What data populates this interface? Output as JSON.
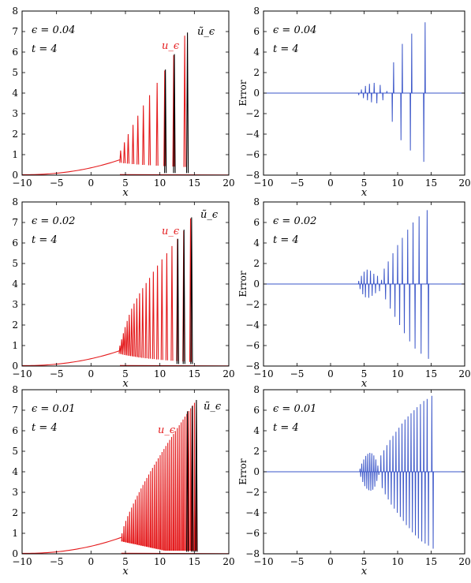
{
  "figure": {
    "background": "#ffffff"
  },
  "colors": {
    "u_curve": "#e41a1c",
    "u_tilde": "#000000",
    "error": "#3a55c8",
    "axis": "#000000"
  },
  "chart_data": [
    {
      "type": "line",
      "panel": "left-row-1",
      "xlabel": "x",
      "ylabel": "",
      "xlim": [
        -10,
        20
      ],
      "ylim": [
        0,
        8
      ],
      "xticks": [
        -10,
        -5,
        0,
        5,
        10,
        15,
        20
      ],
      "yticks": [
        0,
        1,
        2,
        3,
        4,
        5,
        6,
        7,
        8
      ],
      "annotations": [
        "ϵ = 0.04",
        "t = 4"
      ],
      "series": [
        {
          "name": "u_ϵ",
          "color": "#e41a1c",
          "base": {
            "x_start": -10,
            "x_end": 4.2,
            "y_start": 0.02,
            "y_end": 0.75
          },
          "peaks_x": [
            4.3,
            4.85,
            5.4,
            6.1,
            6.8,
            7.6,
            8.5,
            9.6,
            10.7,
            12.0,
            13.6
          ],
          "peaks_y": [
            1.2,
            1.6,
            2.0,
            2.45,
            2.9,
            3.4,
            3.9,
            4.5,
            5.1,
            5.85,
            6.8
          ]
        },
        {
          "name": "ũ_ϵ",
          "color": "#000000",
          "peaks_x": [
            10.8,
            12.1,
            14.0
          ],
          "peaks_y": [
            5.15,
            5.9,
            6.95
          ]
        }
      ]
    },
    {
      "type": "line",
      "panel": "right-row-1",
      "xlabel": "x",
      "ylabel": "Error",
      "xlim": [
        -10,
        20
      ],
      "ylim": [
        -8,
        8
      ],
      "xticks": [
        -10,
        -5,
        0,
        5,
        10,
        15,
        20
      ],
      "yticks": [
        -8,
        -6,
        -4,
        -2,
        0,
        2,
        4,
        6,
        8
      ],
      "annotations": [
        "ϵ = 0.04",
        "t = 4"
      ],
      "series": [
        {
          "name": "",
          "color": "#3a55c8",
          "spikes": [
            [
              4.2,
              -0.2
            ],
            [
              4.6,
              0.35
            ],
            [
              4.9,
              -0.5
            ],
            [
              5.2,
              0.7
            ],
            [
              5.5,
              -0.7
            ],
            [
              5.8,
              0.9
            ],
            [
              6.1,
              -0.9
            ],
            [
              6.5,
              1.0
            ],
            [
              6.9,
              -1.0
            ],
            [
              7.4,
              0.8
            ],
            [
              7.8,
              -0.7
            ],
            [
              8.4,
              0.2
            ],
            [
              9.2,
              -2.8
            ],
            [
              9.4,
              3.0
            ],
            [
              10.5,
              -4.6
            ],
            [
              10.7,
              4.8
            ],
            [
              11.9,
              -5.6
            ],
            [
              12.1,
              5.8
            ],
            [
              13.9,
              -6.7
            ],
            [
              14.1,
              6.9
            ]
          ]
        }
      ]
    },
    {
      "type": "line",
      "panel": "left-row-2",
      "xlabel": "x",
      "ylabel": "",
      "xlim": [
        -10,
        20
      ],
      "ylim": [
        0,
        8
      ],
      "xticks": [
        -10,
        -5,
        0,
        5,
        10,
        15,
        20
      ],
      "yticks": [
        0,
        1,
        2,
        3,
        4,
        5,
        6,
        7,
        8
      ],
      "annotations": [
        "ϵ = 0.02",
        "t = 4"
      ],
      "series": [
        {
          "name": "u_ϵ",
          "color": "#e41a1c",
          "base": {
            "x_start": -10,
            "x_end": 4.2,
            "y_start": 0.02,
            "y_end": 0.75
          },
          "peaks_x": [
            4.2,
            4.45,
            4.7,
            4.95,
            5.25,
            5.55,
            5.9,
            6.25,
            6.65,
            7.05,
            7.5,
            8.0,
            8.5,
            9.05,
            9.65,
            10.3,
            11.0,
            11.75,
            12.55,
            13.45,
            14.45
          ],
          "peaks_y": [
            1.0,
            1.3,
            1.6,
            1.9,
            2.2,
            2.5,
            2.8,
            3.05,
            3.3,
            3.55,
            3.8,
            4.05,
            4.3,
            4.6,
            4.9,
            5.2,
            5.5,
            5.85,
            6.2,
            6.6,
            7.2
          ]
        },
        {
          "name": "ũ_ϵ",
          "color": "#000000",
          "peaks_x": [
            12.6,
            13.5,
            14.6
          ],
          "peaks_y": [
            6.2,
            6.65,
            7.25
          ]
        }
      ]
    },
    {
      "type": "line",
      "panel": "right-row-2",
      "xlabel": "x",
      "ylabel": "Error",
      "xlim": [
        -10,
        20
      ],
      "ylim": [
        -8,
        8
      ],
      "xticks": [
        -10,
        -5,
        0,
        5,
        10,
        15,
        20
      ],
      "yticks": [
        -8,
        -6,
        -4,
        -2,
        0,
        2,
        4,
        6,
        8
      ],
      "annotations": [
        "ϵ = 0.02",
        "t = 4"
      ],
      "series": [
        {
          "name": "",
          "color": "#3a55c8",
          "spikes": [
            [
              4.2,
              0.3
            ],
            [
              4.4,
              -0.5
            ],
            [
              4.6,
              0.8
            ],
            [
              4.8,
              -1.0
            ],
            [
              5.0,
              1.2
            ],
            [
              5.2,
              -1.3
            ],
            [
              5.45,
              1.4
            ],
            [
              5.7,
              -1.35
            ],
            [
              5.95,
              1.3
            ],
            [
              6.2,
              -1.15
            ],
            [
              6.45,
              1.0
            ],
            [
              6.7,
              -0.9
            ],
            [
              7.0,
              0.8
            ],
            [
              7.3,
              -0.7
            ],
            [
              7.6,
              0.4
            ],
            [
              8.0,
              1.5
            ],
            [
              8.2,
              -1.5
            ],
            [
              8.6,
              2.2
            ],
            [
              8.9,
              -2.4
            ],
            [
              9.3,
              3.0
            ],
            [
              9.6,
              -3.2
            ],
            [
              10.0,
              3.8
            ],
            [
              10.3,
              -4.0
            ],
            [
              10.7,
              4.5
            ],
            [
              11.0,
              -4.8
            ],
            [
              11.5,
              5.3
            ],
            [
              11.8,
              -5.6
            ],
            [
              12.3,
              6.0
            ],
            [
              12.6,
              -6.3
            ],
            [
              13.2,
              6.6
            ],
            [
              13.5,
              -6.8
            ],
            [
              14.4,
              7.2
            ],
            [
              14.6,
              -7.3
            ]
          ]
        }
      ]
    },
    {
      "type": "line",
      "panel": "left-row-3",
      "xlabel": "x",
      "ylabel": "",
      "xlim": [
        -10,
        20
      ],
      "ylim": [
        0,
        8
      ],
      "xticks": [
        -10,
        -5,
        0,
        5,
        10,
        15,
        20
      ],
      "yticks": [
        0,
        1,
        2,
        3,
        4,
        5,
        6,
        7,
        8
      ],
      "annotations": [
        "ϵ = 0.01",
        "t = 4"
      ],
      "series": [
        {
          "name": "u_ϵ",
          "color": "#e41a1c",
          "base": {
            "x_start": -10,
            "x_end": 4.4,
            "y_start": 0.02,
            "y_end": 0.8
          },
          "dense_start": 4.5,
          "dense_end": 15.3,
          "dense_count": 40,
          "dense_y_start": 1.0,
          "dense_y_end": 7.5
        },
        {
          "name": "ũ_ϵ",
          "color": "#000000",
          "peaks_x": [
            14.0,
            14.7,
            15.3
          ],
          "peaks_y": [
            6.95,
            7.2,
            7.5
          ]
        }
      ]
    },
    {
      "type": "line",
      "panel": "right-row-3",
      "xlabel": "x",
      "ylabel": "Error",
      "xlim": [
        -10,
        20
      ],
      "ylim": [
        -8,
        8
      ],
      "xticks": [
        -10,
        -5,
        0,
        5,
        10,
        15,
        20
      ],
      "yticks": [
        -8,
        -6,
        -4,
        -2,
        0,
        2,
        4,
        6,
        8
      ],
      "annotations": [
        "ϵ = 0.01",
        "t = 4"
      ],
      "series": [
        {
          "name": "",
          "color": "#3a55c8",
          "spikes": [
            [
              4.4,
              0.3
            ],
            [
              4.5,
              -0.5
            ],
            [
              4.65,
              0.8
            ],
            [
              4.8,
              -1.0
            ],
            [
              4.95,
              1.2
            ],
            [
              5.1,
              -1.4
            ],
            [
              5.25,
              1.55
            ],
            [
              5.4,
              -1.65
            ],
            [
              5.55,
              1.75
            ],
            [
              5.7,
              -1.8
            ],
            [
              5.85,
              1.85
            ],
            [
              6.0,
              -1.85
            ],
            [
              6.15,
              1.8
            ],
            [
              6.3,
              -1.75
            ],
            [
              6.45,
              1.6
            ],
            [
              6.6,
              -1.45
            ],
            [
              6.75,
              1.2
            ],
            [
              6.9,
              -0.9
            ],
            [
              7.05,
              0.6
            ],
            [
              7.2,
              -0.3
            ],
            [
              7.5,
              1.6
            ],
            [
              7.7,
              -1.6
            ],
            [
              7.95,
              2.1
            ],
            [
              8.15,
              -2.2
            ],
            [
              8.4,
              2.6
            ],
            [
              8.6,
              -2.7
            ],
            [
              8.85,
              3.1
            ],
            [
              9.05,
              -3.2
            ],
            [
              9.3,
              3.5
            ],
            [
              9.5,
              -3.6
            ],
            [
              9.75,
              3.9
            ],
            [
              9.95,
              -4.0
            ],
            [
              10.2,
              4.3
            ],
            [
              10.4,
              -4.4
            ],
            [
              10.65,
              4.7
            ],
            [
              10.85,
              -4.8
            ],
            [
              11.1,
              5.1
            ],
            [
              11.3,
              -5.2
            ],
            [
              11.55,
              5.4
            ],
            [
              11.75,
              -5.5
            ],
            [
              12.0,
              5.7
            ],
            [
              12.2,
              -5.9
            ],
            [
              12.45,
              6.0
            ],
            [
              12.65,
              -6.2
            ],
            [
              12.9,
              6.3
            ],
            [
              13.1,
              -6.5
            ],
            [
              13.4,
              6.6
            ],
            [
              13.6,
              -6.8
            ],
            [
              13.9,
              6.9
            ],
            [
              14.1,
              -7.0
            ],
            [
              14.4,
              7.1
            ],
            [
              14.6,
              -7.2
            ],
            [
              15.1,
              7.4
            ],
            [
              15.3,
              -7.5
            ]
          ]
        }
      ]
    }
  ]
}
